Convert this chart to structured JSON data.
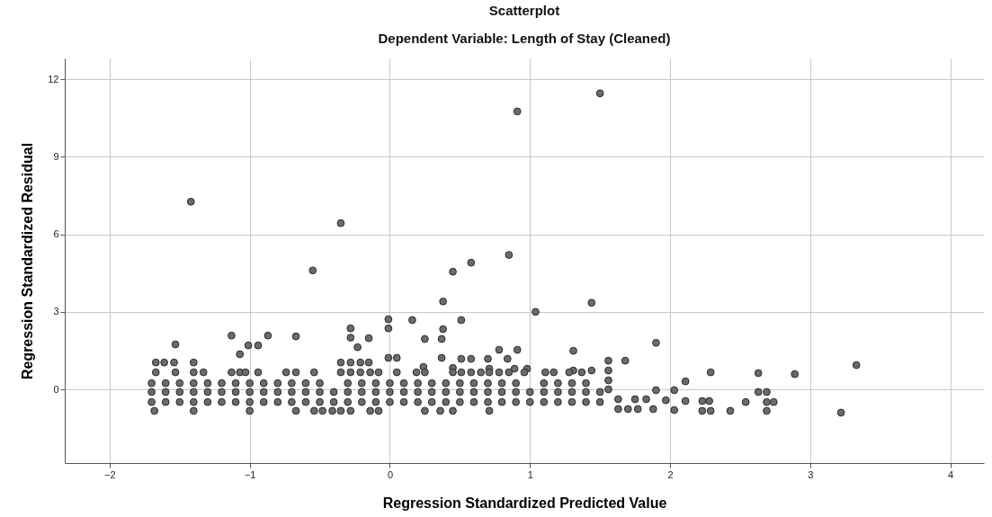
{
  "chart_data": {
    "type": "scatter",
    "title": "Scatterplot",
    "subtitle": "Dependent Variable: Length of Stay (Cleaned)",
    "xlabel": "Regression Standardized Predicted Value",
    "ylabel": "Regression Standardized Residual",
    "xlim": [
      -2.32,
      4.24
    ],
    "ylim": [
      -2.85,
      12.8
    ],
    "xticks": [
      -2,
      -1,
      0,
      1,
      2,
      3,
      4
    ],
    "yticks": [
      0,
      3,
      6,
      9,
      12
    ],
    "grid": true,
    "marker": "circle",
    "series": [
      {
        "color": "#6b6b6b",
        "x": [
          -1.42,
          -0.35,
          -0.55,
          0.45,
          0.58,
          0.85,
          0.91,
          1.5,
          0.38,
          1.04,
          1.44,
          1.9,
          2.89,
          3.33,
          3.22,
          -1.53,
          -1.13,
          -0.87,
          -0.67,
          -1.01,
          -0.94,
          -1.07,
          -0.28,
          -0.28,
          -0.15,
          -0.23,
          -0.01,
          -0.01,
          -0.01,
          0.05,
          0.16,
          0.51,
          0.38,
          0.25,
          0.37,
          0.78,
          0.91,
          1.31,
          1.56,
          1.68,
          0.37,
          0.51,
          0.58,
          0.7,
          0.84,
          0.98,
          0.89,
          0.71,
          0.45,
          0.24,
          2.29,
          2.63,
          2.11,
          2.63,
          2.69,
          2.11,
          2.23,
          2.28,
          2.54,
          2.69,
          2.74,
          2.23,
          2.29,
          2.43,
          2.69,
          1.9,
          2.03,
          1.63,
          1.75,
          1.83,
          1.97,
          1.63,
          1.7,
          1.77,
          1.88,
          2.03,
          1.56,
          1.56,
          1.56,
          1.44,
          1.31,
          -1.67,
          -1.61,
          -1.54,
          -1.4,
          -0.35,
          -0.28,
          -0.21,
          -0.15,
          -1.67,
          -1.53,
          -1.4,
          -1.33,
          -1.13,
          -1.07,
          -1.03,
          -0.94,
          -0.74,
          -0.67,
          -0.54,
          -0.35,
          -0.28,
          -0.21,
          -0.14,
          -0.08,
          0.05,
          0.19,
          0.25,
          0.45,
          0.51,
          0.58,
          0.65,
          0.71,
          0.78,
          0.85,
          0.96,
          1.11,
          1.17,
          1.28,
          1.37,
          -1.7,
          -1.6,
          -1.5,
          -1.4,
          -1.3,
          -1.2,
          -1.1,
          -1.0,
          -0.9,
          -0.8,
          -0.7,
          -0.6,
          -0.5,
          -0.3,
          -0.2,
          -0.1,
          0.0,
          0.1,
          0.2,
          0.3,
          0.4,
          0.5,
          0.6,
          0.7,
          0.8,
          0.9,
          1.1,
          1.2,
          1.3,
          1.4,
          -1.7,
          -1.6,
          -1.5,
          -1.4,
          -1.3,
          -1.2,
          -1.1,
          -1.0,
          -0.9,
          -0.8,
          -0.7,
          -0.6,
          -0.5,
          -0.4,
          -0.3,
          -0.2,
          -0.1,
          0.0,
          0.1,
          0.2,
          0.3,
          0.4,
          0.5,
          0.6,
          0.7,
          0.8,
          0.9,
          1.0,
          1.1,
          1.2,
          1.3,
          1.4,
          1.5,
          -1.7,
          -1.6,
          -1.5,
          -1.4,
          -1.3,
          -1.2,
          -1.1,
          -1.0,
          -0.9,
          -0.8,
          -0.7,
          -0.6,
          -0.5,
          -0.4,
          -0.3,
          -0.2,
          -0.1,
          0.0,
          0.1,
          0.2,
          0.3,
          0.4,
          0.5,
          0.6,
          0.7,
          0.8,
          0.9,
          1.0,
          1.1,
          1.2,
          1.3,
          1.4,
          1.5,
          -1.68,
          -1.4,
          -1.0,
          -0.67,
          -0.54,
          -0.48,
          -0.41,
          -0.35,
          -0.28,
          -0.14,
          -0.08,
          0.25,
          0.36,
          0.45,
          0.71
        ],
        "values": [
          7.26,
          6.43,
          4.6,
          4.55,
          4.9,
          5.2,
          10.75,
          11.45,
          3.4,
          3.0,
          3.35,
          1.8,
          0.59,
          0.94,
          -0.9,
          1.74,
          2.08,
          2.08,
          2.05,
          1.7,
          1.7,
          1.36,
          2.36,
          2.0,
          1.98,
          1.63,
          2.71,
          2.36,
          1.22,
          1.22,
          2.68,
          2.68,
          2.33,
          1.95,
          1.95,
          1.53,
          1.53,
          1.49,
          1.11,
          1.11,
          1.22,
          1.18,
          1.18,
          1.18,
          1.18,
          0.8,
          0.8,
          0.8,
          0.83,
          0.87,
          0.66,
          0.63,
          0.31,
          -0.1,
          -0.1,
          -0.45,
          -0.45,
          -0.45,
          -0.49,
          -0.49,
          -0.49,
          -0.83,
          -0.83,
          -0.83,
          -0.83,
          -0.03,
          -0.03,
          -0.38,
          -0.38,
          -0.38,
          -0.42,
          -0.76,
          -0.76,
          -0.76,
          -0.76,
          -0.8,
          0.73,
          0.35,
          0.0,
          0.73,
          0.73,
          1.04,
          1.04,
          1.04,
          1.04,
          1.04,
          1.04,
          1.04,
          1.04,
          0.66,
          0.66,
          0.66,
          0.66,
          0.66,
          0.66,
          0.66,
          0.66,
          0.66,
          0.66,
          0.66,
          0.66,
          0.66,
          0.66,
          0.66,
          0.66,
          0.66,
          0.66,
          0.66,
          0.66,
          0.66,
          0.66,
          0.66,
          0.66,
          0.66,
          0.66,
          0.66,
          0.66,
          0.66,
          0.66,
          0.66,
          0.24,
          0.24,
          0.24,
          0.24,
          0.24,
          0.24,
          0.24,
          0.24,
          0.24,
          0.24,
          0.24,
          0.24,
          0.24,
          0.24,
          0.24,
          0.24,
          0.24,
          0.24,
          0.24,
          0.24,
          0.24,
          0.24,
          0.24,
          0.24,
          0.24,
          0.24,
          0.24,
          0.24,
          0.24,
          0.24,
          -0.1,
          -0.1,
          -0.1,
          -0.1,
          -0.1,
          -0.1,
          -0.1,
          -0.1,
          -0.1,
          -0.1,
          -0.1,
          -0.1,
          -0.1,
          -0.1,
          -0.1,
          -0.1,
          -0.1,
          -0.1,
          -0.1,
          -0.1,
          -0.1,
          -0.1,
          -0.1,
          -0.1,
          -0.1,
          -0.1,
          -0.1,
          -0.1,
          -0.1,
          -0.1,
          -0.1,
          -0.1,
          -0.1,
          -0.49,
          -0.49,
          -0.49,
          -0.49,
          -0.49,
          -0.49,
          -0.49,
          -0.49,
          -0.49,
          -0.49,
          -0.49,
          -0.49,
          -0.49,
          -0.49,
          -0.49,
          -0.49,
          -0.49,
          -0.49,
          -0.49,
          -0.49,
          -0.49,
          -0.49,
          -0.49,
          -0.49,
          -0.49,
          -0.49,
          -0.49,
          -0.49,
          -0.49,
          -0.49,
          -0.49,
          -0.49,
          -0.49,
          -0.83,
          -0.83,
          -0.83,
          -0.83,
          -0.83,
          -0.83,
          -0.83,
          -0.83,
          -0.83,
          -0.83,
          -0.83,
          -0.83,
          -0.83,
          -0.83,
          -0.83
        ]
      }
    ]
  }
}
